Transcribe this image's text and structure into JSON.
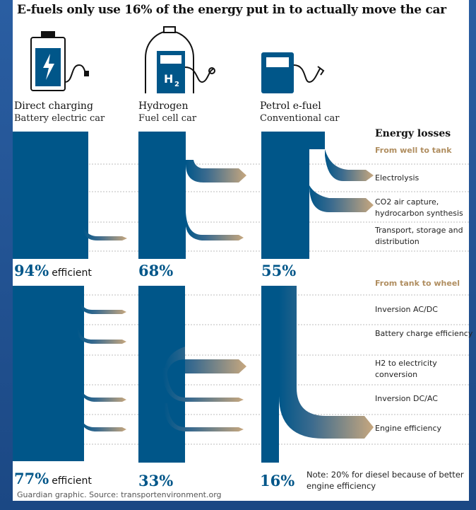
{
  "title": "E-fuels only use 16% of the energy put in to actually move the car",
  "columns": [
    {
      "name": "Direct charging",
      "subtitle": "Battery electric car",
      "icon": "battery-charger-icon",
      "well_to_tank": "94%",
      "well_to_tank_suffix": "efficient",
      "tank_to_wheel": "77%",
      "tank_to_wheel_suffix": "efficient"
    },
    {
      "name": "Hydrogen",
      "subtitle": "Fuel cell car",
      "icon": "hydrogen-pump-icon",
      "icon_text": "H",
      "icon_sub": "2",
      "well_to_tank": "68%",
      "tank_to_wheel": "33%"
    },
    {
      "name": "Petrol e-fuel",
      "subtitle": "Conventional car",
      "icon": "fuel-pump-icon",
      "well_to_tank": "55%",
      "tank_to_wheel": "16%"
    }
  ],
  "losses_heading": "Energy losses",
  "section_well_to_tank": "From well to tank",
  "section_tank_to_wheel": "From tank to wheel",
  "losses_well_to_tank": [
    "Electrolysis",
    "CO2 air capture, hydrocarbon synthesis",
    "Transport, storage and distribution"
  ],
  "losses_tank_to_wheel": [
    "Inversion AC/DC",
    "Battery charge efficiency",
    "H2 to electricity conversion",
    "Inversion DC/AC",
    "Engine efficiency"
  ],
  "note": "Note: 20% for diesel because of better engine efficiency",
  "source": "Guardian graphic. Source: transportenvironment.org",
  "colors": {
    "flow": "#005689",
    "loss_end": "#c7a77e",
    "section": "#b08e60",
    "percent": "#005689"
  }
}
